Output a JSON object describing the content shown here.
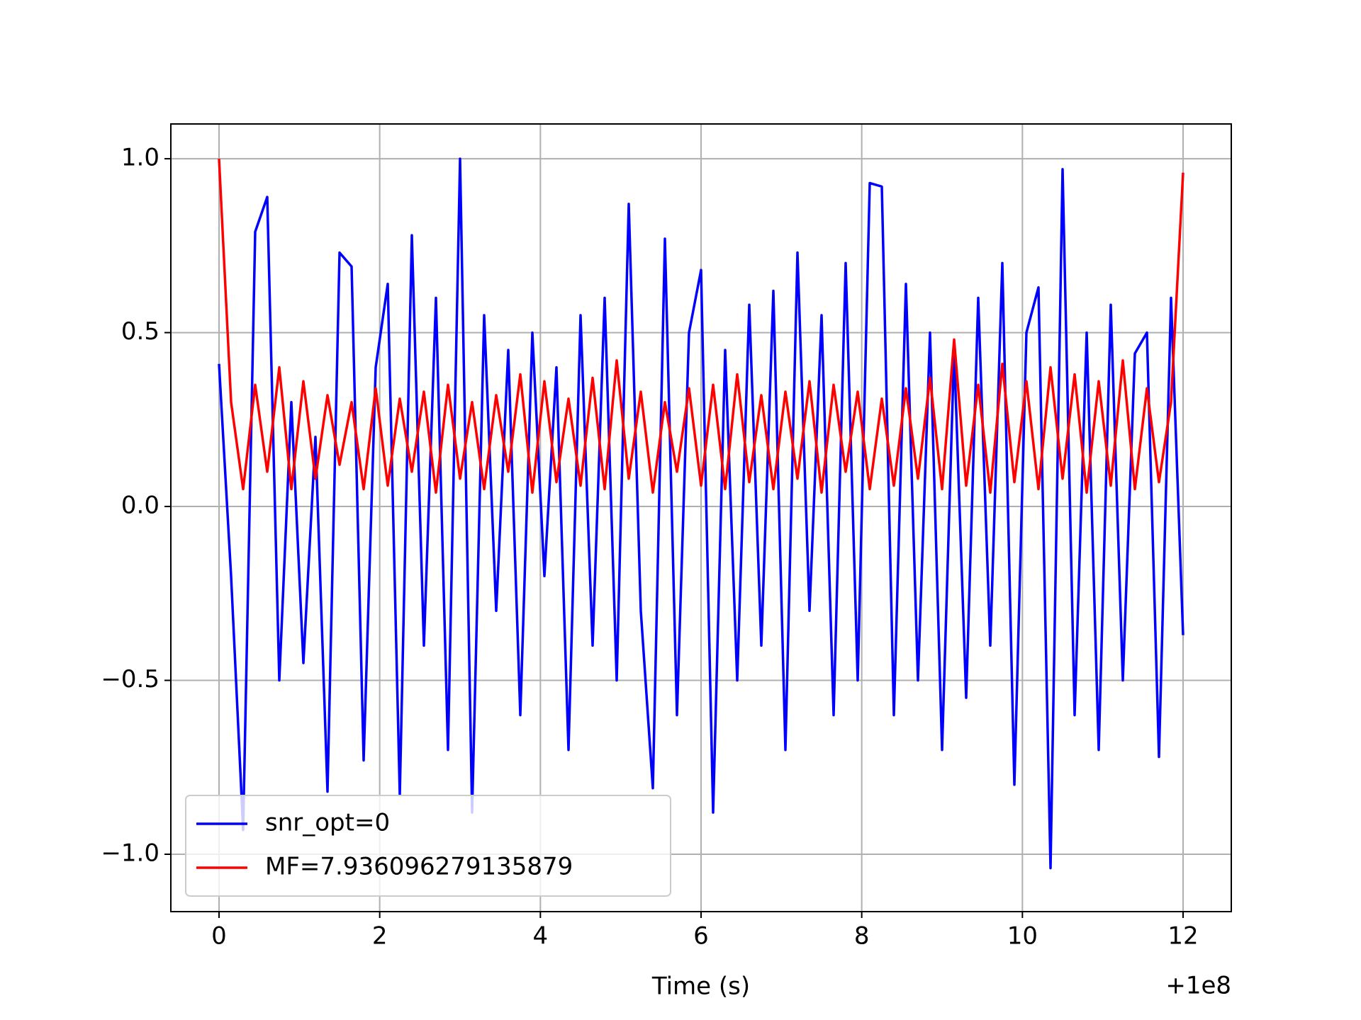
{
  "chart_data": {
    "type": "line",
    "xlabel": "Time (s)",
    "x_offset_label": "+1e8",
    "x": [
      0,
      0.15,
      0.3,
      0.45,
      0.6,
      0.75,
      0.9,
      1.05,
      1.2,
      1.35,
      1.5,
      1.65,
      1.8,
      1.95,
      2.1,
      2.25,
      2.4,
      2.55,
      2.7,
      2.85,
      3.0,
      3.15,
      3.3,
      3.45,
      3.6,
      3.75,
      3.9,
      4.05,
      4.2,
      4.35,
      4.5,
      4.65,
      4.8,
      4.95,
      5.1,
      5.25,
      5.4,
      5.55,
      5.7,
      5.85,
      6.0,
      6.15,
      6.3,
      6.45,
      6.6,
      6.75,
      6.9,
      7.05,
      7.2,
      7.35,
      7.5,
      7.65,
      7.8,
      7.95,
      8.1,
      8.25,
      8.4,
      8.55,
      8.7,
      8.85,
      9.0,
      9.15,
      9.3,
      9.45,
      9.6,
      9.75,
      9.9,
      10.05,
      10.2,
      10.35,
      10.5,
      10.65,
      10.8,
      10.95,
      11.1,
      11.25,
      11.4,
      11.55,
      11.7,
      11.85,
      12.0
    ],
    "series": [
      {
        "name": "snr_opt=0",
        "color": "#0000ff",
        "values": [
          0.41,
          -0.2,
          -0.93,
          0.79,
          0.89,
          -0.5,
          0.3,
          -0.45,
          0.2,
          -0.82,
          0.73,
          0.69,
          -0.73,
          0.4,
          0.64,
          -0.83,
          0.78,
          -0.4,
          0.6,
          -0.7,
          1.0,
          -0.88,
          0.55,
          -0.3,
          0.45,
          -0.6,
          0.5,
          -0.2,
          0.4,
          -0.7,
          0.55,
          -0.4,
          0.6,
          -0.5,
          0.87,
          -0.3,
          -0.81,
          0.77,
          -0.6,
          0.5,
          0.68,
          -0.88,
          0.45,
          -0.5,
          0.58,
          -0.4,
          0.62,
          -0.7,
          0.73,
          -0.3,
          0.55,
          -0.6,
          0.7,
          -0.5,
          0.93,
          0.92,
          -0.6,
          0.64,
          -0.5,
          0.5,
          -0.7,
          0.45,
          -0.55,
          0.6,
          -0.4,
          0.7,
          -0.8,
          0.5,
          0.63,
          -1.04,
          0.97,
          -0.6,
          0.5,
          -0.7,
          0.58,
          -0.5,
          0.44,
          0.5,
          -0.72,
          0.6,
          -0.37
        ]
      },
      {
        "name": "MF=7.936096279135879",
        "color": "#ff0000",
        "values": [
          1.0,
          0.3,
          0.05,
          0.35,
          0.1,
          0.4,
          0.05,
          0.36,
          0.08,
          0.32,
          0.12,
          0.3,
          0.05,
          0.34,
          0.06,
          0.31,
          0.1,
          0.33,
          0.04,
          0.35,
          0.08,
          0.3,
          0.05,
          0.32,
          0.1,
          0.38,
          0.04,
          0.36,
          0.07,
          0.31,
          0.06,
          0.37,
          0.05,
          0.42,
          0.08,
          0.33,
          0.04,
          0.3,
          0.1,
          0.34,
          0.06,
          0.35,
          0.05,
          0.38,
          0.07,
          0.32,
          0.05,
          0.33,
          0.08,
          0.36,
          0.04,
          0.35,
          0.1,
          0.33,
          0.05,
          0.31,
          0.06,
          0.34,
          0.08,
          0.37,
          0.05,
          0.48,
          0.06,
          0.35,
          0.04,
          0.41,
          0.07,
          0.36,
          0.05,
          0.4,
          0.08,
          0.38,
          0.04,
          0.36,
          0.06,
          0.42,
          0.05,
          0.34,
          0.07,
          0.3,
          0.96
        ]
      }
    ],
    "xlim": [
      -0.6,
      12.6
    ],
    "ylim": [
      -1.165,
      1.1
    ],
    "xticks": [
      0,
      2,
      4,
      6,
      8,
      10,
      12
    ],
    "yticks": [
      {
        "value": -1.0,
        "label": "−1.0"
      },
      {
        "value": -0.5,
        "label": "−0.5"
      },
      {
        "value": 0.0,
        "label": "0.0"
      },
      {
        "value": 0.5,
        "label": "0.5"
      },
      {
        "value": 1.0,
        "label": "1.0"
      }
    ],
    "grid": true,
    "legend": "lower left"
  }
}
